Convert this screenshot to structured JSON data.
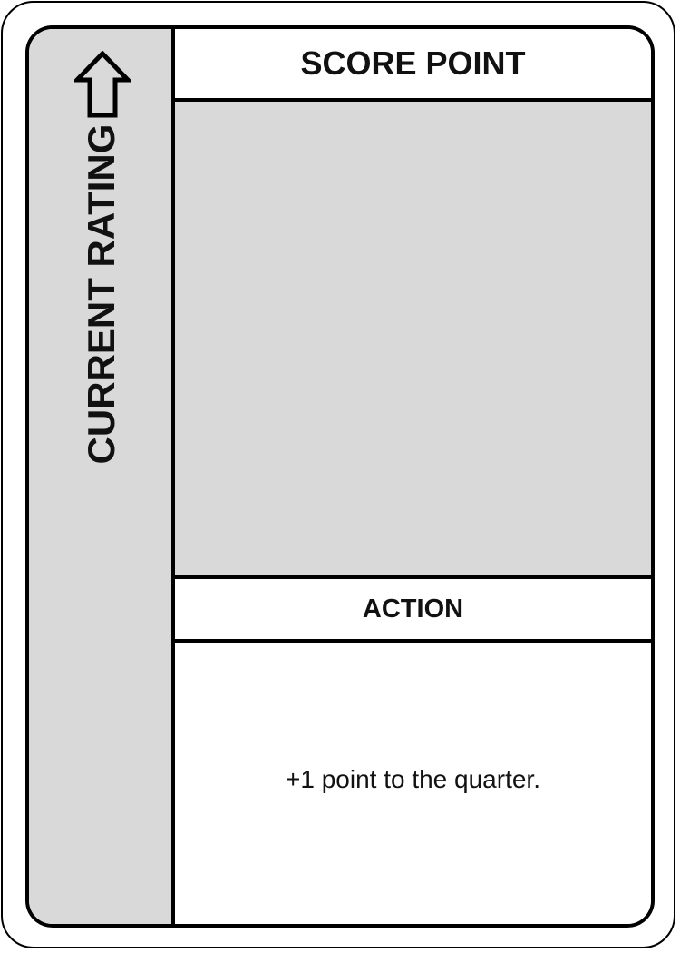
{
  "card": {
    "sidebar": {
      "label": "CURRENT RATING",
      "icon": "arrow-up-icon",
      "color": "#d9d9d9"
    },
    "title": "SCORE POINT",
    "section_heading": "ACTION",
    "effect_text": "+1 point to the quarter."
  }
}
